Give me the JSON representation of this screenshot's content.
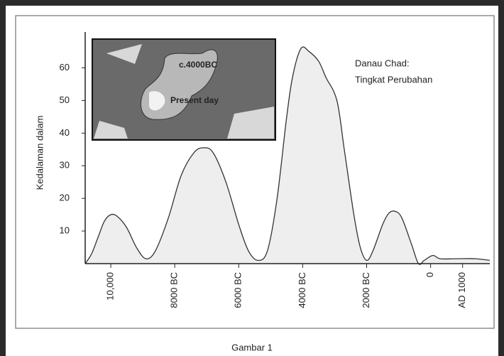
{
  "chart_data": {
    "type": "area",
    "ylabel": "Kedalaman dalam",
    "annotation": [
      "Danau Chad:",
      "Tingkat Perubahan"
    ],
    "inset_labels": [
      "c.4000BC",
      "Present day"
    ],
    "caption": "Gambar 1",
    "color": "#eeeeee",
    "line_color": "#333333",
    "x": [
      -10800,
      -10600,
      -10400,
      -10200,
      -10000,
      -9800,
      -9500,
      -9200,
      -8900,
      -8600,
      -8200,
      -7800,
      -7400,
      -7100,
      -6800,
      -6400,
      -6000,
      -5700,
      -5400,
      -5100,
      -4800,
      -4500,
      -4300,
      -4050,
      -3800,
      -3500,
      -3270,
      -2930,
      -2700,
      -2400,
      -2200,
      -2000,
      -1800,
      -1500,
      -1300,
      -1100,
      -900,
      -600,
      -380,
      -200,
      70,
      300,
      800,
      1400,
      1850
    ],
    "values": [
      0,
      3,
      8,
      13,
      15,
      14.5,
      11,
      5,
      1.5,
      4,
      14,
      27,
      34,
      35.5,
      34,
      25,
      12,
      4,
      1,
      4,
      20,
      45,
      58,
      66,
      65,
      62,
      57,
      50,
      35,
      15,
      5,
      1,
      4,
      12,
      15.5,
      16,
      14,
      6,
      0,
      1,
      2.5,
      1.5,
      1.5,
      1.5,
      1
    ],
    "xlim": [
      -10800,
      1850
    ],
    "ylim": [
      0,
      71
    ],
    "yticks": [
      10,
      20,
      30,
      40,
      50,
      60
    ],
    "xticks": [
      {
        "value": -10000,
        "label": "10,000"
      },
      {
        "value": -8000,
        "label": "8000 BC"
      },
      {
        "value": -6000,
        "label": "6000 BC"
      },
      {
        "value": -4000,
        "label": "4000 BC"
      },
      {
        "value": -2000,
        "label": "2000 BC"
      },
      0,
      {
        "value": 1000,
        "label": "AD 1000"
      }
    ]
  }
}
